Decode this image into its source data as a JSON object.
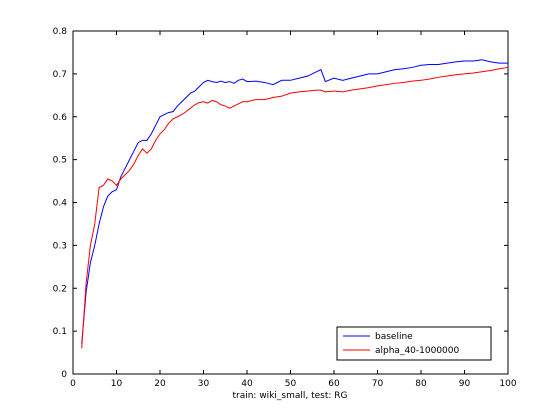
{
  "chart_data": {
    "type": "line",
    "title": "",
    "xlabel": "train: wiki_small, test: RG",
    "ylabel": "",
    "xlim": [
      0,
      100
    ],
    "ylim": [
      0,
      0.8
    ],
    "x_ticks": [
      0,
      10,
      20,
      30,
      40,
      50,
      60,
      70,
      80,
      90,
      100
    ],
    "y_ticks": [
      0,
      0.1,
      0.2,
      0.3,
      0.4,
      0.5,
      0.6,
      0.7,
      0.8
    ],
    "x_tick_labels": [
      "0",
      "10",
      "20",
      "30",
      "40",
      "50",
      "60",
      "70",
      "80",
      "90",
      "100"
    ],
    "y_tick_labels": [
      "0",
      "0.1",
      "0.2",
      "0.3",
      "0.4",
      "0.5",
      "0.6",
      "0.7",
      "0.8"
    ],
    "grid": false,
    "legend_position": "bottom-right",
    "series": [
      {
        "name": "baseline",
        "color": "#0000ff",
        "x": [
          2,
          3,
          4,
          5,
          6,
          7,
          8,
          9,
          10,
          11,
          12,
          13,
          14,
          15,
          16,
          17,
          18,
          19,
          20,
          21,
          22,
          23,
          24,
          25,
          26,
          27,
          28,
          29,
          30,
          31,
          32,
          33,
          34,
          35,
          36,
          37,
          38,
          39,
          40,
          42,
          44,
          46,
          48,
          50,
          52,
          54,
          56,
          57,
          58,
          60,
          62,
          64,
          66,
          68,
          70,
          72,
          74,
          76,
          78,
          80,
          82,
          84,
          86,
          88,
          90,
          92,
          94,
          96,
          98,
          100
        ],
        "y": [
          0.07,
          0.19,
          0.26,
          0.3,
          0.35,
          0.39,
          0.415,
          0.425,
          0.43,
          0.46,
          0.48,
          0.5,
          0.52,
          0.54,
          0.545,
          0.545,
          0.56,
          0.58,
          0.6,
          0.605,
          0.61,
          0.612,
          0.625,
          0.635,
          0.645,
          0.655,
          0.66,
          0.67,
          0.68,
          0.685,
          0.682,
          0.68,
          0.683,
          0.68,
          0.682,
          0.678,
          0.685,
          0.688,
          0.682,
          0.683,
          0.68,
          0.675,
          0.685,
          0.685,
          0.69,
          0.695,
          0.705,
          0.71,
          0.682,
          0.69,
          0.685,
          0.69,
          0.695,
          0.7,
          0.7,
          0.705,
          0.71,
          0.712,
          0.715,
          0.72,
          0.722,
          0.722,
          0.725,
          0.728,
          0.73,
          0.73,
          0.733,
          0.728,
          0.725,
          0.725
        ]
      },
      {
        "name": "alpha_40-1000000",
        "color": "#ff0000",
        "x": [
          2,
          3,
          4,
          5,
          6,
          7,
          8,
          9,
          10,
          11,
          12,
          13,
          14,
          15,
          16,
          17,
          18,
          19,
          20,
          21,
          22,
          23,
          24,
          25,
          26,
          27,
          28,
          29,
          30,
          31,
          32,
          33,
          34,
          35,
          36,
          37,
          38,
          39,
          40,
          42,
          44,
          46,
          48,
          50,
          52,
          54,
          56,
          57,
          58,
          60,
          62,
          64,
          66,
          68,
          70,
          72,
          74,
          76,
          78,
          80,
          82,
          84,
          86,
          88,
          90,
          92,
          94,
          96,
          98,
          100
        ],
        "y": [
          0.06,
          0.21,
          0.3,
          0.35,
          0.435,
          0.44,
          0.455,
          0.45,
          0.44,
          0.455,
          0.465,
          0.475,
          0.49,
          0.51,
          0.525,
          0.515,
          0.525,
          0.545,
          0.56,
          0.57,
          0.585,
          0.595,
          0.6,
          0.605,
          0.612,
          0.62,
          0.628,
          0.633,
          0.635,
          0.632,
          0.638,
          0.635,
          0.628,
          0.625,
          0.62,
          0.625,
          0.63,
          0.635,
          0.635,
          0.64,
          0.64,
          0.645,
          0.648,
          0.655,
          0.658,
          0.66,
          0.662,
          0.662,
          0.658,
          0.66,
          0.658,
          0.662,
          0.665,
          0.668,
          0.672,
          0.675,
          0.678,
          0.68,
          0.683,
          0.685,
          0.688,
          0.692,
          0.695,
          0.698,
          0.7,
          0.702,
          0.705,
          0.708,
          0.712,
          0.715
        ]
      }
    ]
  }
}
